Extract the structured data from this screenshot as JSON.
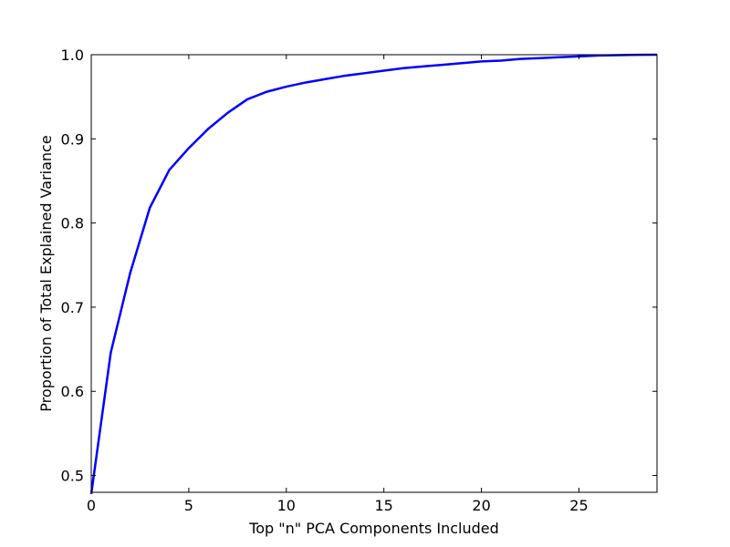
{
  "chart_data": {
    "type": "line",
    "title": "",
    "xlabel": "Top \"n\" PCA Components Included",
    "ylabel": "Proportion of Total Explained Variance",
    "xlim": [
      0,
      29
    ],
    "ylim": [
      0.48,
      1.0
    ],
    "x_ticks": [
      0,
      5,
      10,
      15,
      20,
      25
    ],
    "x_tick_labels": [
      "0",
      "5",
      "10",
      "15",
      "20",
      "25"
    ],
    "y_ticks": [
      0.5,
      0.6,
      0.7,
      0.8,
      0.9,
      1.0
    ],
    "y_tick_labels": [
      "0.5",
      "0.6",
      "0.7",
      "0.8",
      "0.9",
      "1.0"
    ],
    "grid": false,
    "legend": "none",
    "series": [
      {
        "color": "#0000ff",
        "x": [
          0,
          1,
          2,
          3,
          4,
          5,
          6,
          7,
          8,
          9,
          10,
          11,
          12,
          13,
          14,
          15,
          16,
          17,
          18,
          19,
          20,
          21,
          22,
          23,
          24,
          25,
          26,
          27,
          28,
          29
        ],
        "y": [
          0.478,
          0.646,
          0.741,
          0.818,
          0.863,
          0.889,
          0.912,
          0.931,
          0.947,
          0.956,
          0.962,
          0.967,
          0.971,
          0.975,
          0.978,
          0.981,
          0.984,
          0.986,
          0.988,
          0.99,
          0.992,
          0.993,
          0.995,
          0.996,
          0.997,
          0.998,
          0.999,
          0.9995,
          0.9998,
          1.0
        ]
      }
    ]
  }
}
